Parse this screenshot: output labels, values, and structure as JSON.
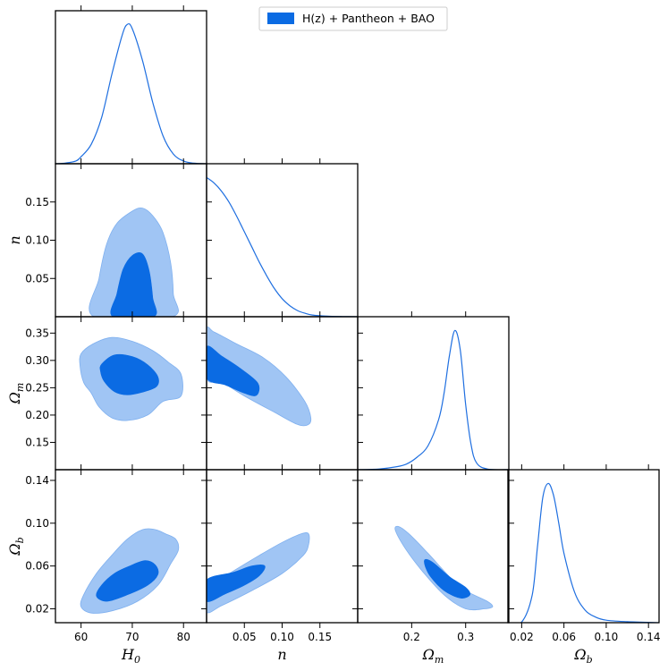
{
  "legend": {
    "label": "H(z) + Pantheon + BAO",
    "color": "#0b6be3"
  },
  "colors": {
    "inner": "#0b6be3",
    "outer": "#a0c5f4",
    "line": "#1f6fe0"
  },
  "chart_data": {
    "type": "corner",
    "parameters": [
      {
        "key": "H0",
        "label": "H0",
        "range": [
          55,
          84.5
        ],
        "ticks": [
          60,
          70,
          80
        ],
        "tick_labels": [
          "60",
          "70",
          "80"
        ]
      },
      {
        "key": "n",
        "label": "n",
        "range": [
          0,
          0.2
        ],
        "ticks": [
          0.05,
          0.1,
          0.15
        ],
        "tick_labels": [
          "0.05",
          "0.10",
          "0.15"
        ]
      },
      {
        "key": "Om",
        "label": "Ωm",
        "range": [
          0.1,
          0.38
        ],
        "ticks": [
          0.15,
          0.2,
          0.25,
          0.3,
          0.35
        ],
        "tick_labels": [
          "0.15",
          "0.20",
          "0.25",
          "0.30",
          "0.35"
        ],
        "x_ticks": [
          0.2,
          0.3
        ],
        "x_tick_labels": [
          "0.2",
          "0.3"
        ]
      },
      {
        "key": "Ob",
        "label": "Ωb",
        "range": [
          0.007,
          0.15
        ],
        "ticks": [
          0.02,
          0.06,
          0.1,
          0.14
        ],
        "tick_labels": [
          "0.02",
          "0.06",
          "0.10",
          "0.14"
        ]
      }
    ],
    "marginals": [
      {
        "param": "H0",
        "x": [
          55,
          57,
          59,
          60,
          62,
          64,
          66,
          68,
          69,
          70,
          72,
          74,
          76,
          78,
          80,
          82,
          84.5
        ],
        "density": [
          0,
          0.005,
          0.02,
          0.05,
          0.14,
          0.33,
          0.64,
          0.92,
          1.0,
          0.97,
          0.74,
          0.44,
          0.2,
          0.07,
          0.02,
          0.004,
          0
        ]
      },
      {
        "param": "n",
        "x": [
          0,
          0.01,
          0.02,
          0.03,
          0.04,
          0.05,
          0.06,
          0.07,
          0.08,
          0.09,
          0.1,
          0.11,
          0.12,
          0.13,
          0.14,
          0.16,
          0.18,
          0.2
        ],
        "density": [
          1.0,
          0.96,
          0.9,
          0.82,
          0.72,
          0.61,
          0.5,
          0.39,
          0.29,
          0.2,
          0.13,
          0.08,
          0.045,
          0.025,
          0.012,
          0.004,
          0.001,
          0
        ]
      },
      {
        "param": "Om",
        "x": [
          0.1,
          0.14,
          0.17,
          0.19,
          0.21,
          0.23,
          0.25,
          0.26,
          0.27,
          0.28,
          0.29,
          0.3,
          0.31,
          0.32,
          0.34,
          0.38
        ],
        "density": [
          0,
          0.005,
          0.02,
          0.04,
          0.09,
          0.17,
          0.36,
          0.55,
          0.82,
          1.0,
          0.86,
          0.47,
          0.18,
          0.05,
          0.005,
          0
        ]
      },
      {
        "param": "Ob",
        "x": [
          0.007,
          0.02,
          0.03,
          0.035,
          0.04,
          0.045,
          0.05,
          0.055,
          0.06,
          0.07,
          0.08,
          0.09,
          0.1,
          0.12,
          0.15
        ],
        "density": [
          0,
          0.005,
          0.2,
          0.55,
          0.9,
          1.0,
          0.92,
          0.72,
          0.5,
          0.22,
          0.09,
          0.04,
          0.018,
          0.007,
          0
        ]
      }
    ],
    "contours": [
      {
        "x": "H0",
        "y": "n",
        "outer": [
          [
            62.5,
            0
          ],
          [
            63.5,
            0.05
          ],
          [
            65,
            0.095
          ],
          [
            67,
            0.122
          ],
          [
            70,
            0.138
          ],
          [
            72,
            0.142
          ],
          [
            74,
            0.132
          ],
          [
            76,
            0.11
          ],
          [
            77.5,
            0.07
          ],
          [
            78,
            0.03
          ],
          [
            77.8,
            0
          ]
        ],
        "inner": [
          [
            66.2,
            0
          ],
          [
            67,
            0.03
          ],
          [
            68.2,
            0.062
          ],
          [
            70,
            0.08
          ],
          [
            72,
            0.082
          ],
          [
            73.3,
            0.06
          ],
          [
            74,
            0.025
          ],
          [
            74.2,
            0
          ]
        ]
      },
      {
        "x": "H0",
        "y": "Om",
        "outer": [
          [
            60,
            0.312
          ],
          [
            62.3,
            0.33
          ],
          [
            66,
            0.342
          ],
          [
            70,
            0.335
          ],
          [
            74,
            0.318
          ],
          [
            77,
            0.297
          ],
          [
            79.5,
            0.275
          ],
          [
            79.5,
            0.235
          ],
          [
            76,
            0.225
          ],
          [
            73,
            0.2
          ],
          [
            69,
            0.19
          ],
          [
            66,
            0.195
          ],
          [
            63.5,
            0.215
          ],
          [
            62,
            0.24
          ],
          [
            60.5,
            0.26
          ],
          [
            59.8,
            0.29
          ]
        ],
        "inner": [
          [
            64,
            0.293
          ],
          [
            66.5,
            0.31
          ],
          [
            70,
            0.307
          ],
          [
            73,
            0.292
          ],
          [
            75,
            0.27
          ],
          [
            74.7,
            0.252
          ],
          [
            72,
            0.242
          ],
          [
            69,
            0.237
          ],
          [
            66.5,
            0.243
          ],
          [
            64.5,
            0.262
          ],
          [
            63.8,
            0.28
          ]
        ]
      },
      {
        "x": "H0",
        "y": "Ob",
        "outer": [
          [
            60,
            0.022
          ],
          [
            60.5,
            0.033
          ],
          [
            63,
            0.053
          ],
          [
            66,
            0.07
          ],
          [
            69,
            0.085
          ],
          [
            72,
            0.094
          ],
          [
            74.5,
            0.094
          ],
          [
            76.5,
            0.09
          ],
          [
            78.5,
            0.085
          ],
          [
            79,
            0.075
          ],
          [
            77.5,
            0.062
          ],
          [
            75,
            0.042
          ],
          [
            71,
            0.027
          ],
          [
            66,
            0.018
          ],
          [
            62,
            0.016
          ]
        ],
        "inner": [
          [
            63,
            0.032
          ],
          [
            64,
            0.042
          ],
          [
            66.5,
            0.053
          ],
          [
            69.5,
            0.06
          ],
          [
            72.5,
            0.065
          ],
          [
            74.5,
            0.061
          ],
          [
            75,
            0.052
          ],
          [
            73,
            0.042
          ],
          [
            69,
            0.033
          ],
          [
            65,
            0.027
          ]
        ]
      },
      {
        "x": "n",
        "y": "Om",
        "outer": [
          [
            0,
            0.355
          ],
          [
            0.01,
            0.352
          ],
          [
            0.04,
            0.33
          ],
          [
            0.075,
            0.305
          ],
          [
            0.105,
            0.27
          ],
          [
            0.13,
            0.225
          ],
          [
            0.138,
            0.195
          ],
          [
            0.134,
            0.182
          ],
          [
            0.12,
            0.183
          ],
          [
            0.09,
            0.205
          ],
          [
            0.05,
            0.235
          ],
          [
            0.02,
            0.26
          ],
          [
            0,
            0.268
          ]
        ],
        "inner": [
          [
            0,
            0.325
          ],
          [
            0.02,
            0.308
          ],
          [
            0.045,
            0.285
          ],
          [
            0.068,
            0.258
          ],
          [
            0.066,
            0.236
          ],
          [
            0.05,
            0.24
          ],
          [
            0.025,
            0.255
          ],
          [
            0,
            0.268
          ]
        ]
      },
      {
        "x": "n",
        "y": "Ob",
        "outer": [
          [
            0,
            0.04
          ],
          [
            0.03,
            0.053
          ],
          [
            0.07,
            0.07
          ],
          [
            0.1,
            0.082
          ],
          [
            0.125,
            0.09
          ],
          [
            0.135,
            0.09
          ],
          [
            0.135,
            0.08
          ],
          [
            0.128,
            0.07
          ],
          [
            0.1,
            0.053
          ],
          [
            0.06,
            0.037
          ],
          [
            0.02,
            0.023
          ],
          [
            0,
            0.017
          ]
        ],
        "inner": [
          [
            0,
            0.047
          ],
          [
            0.035,
            0.054
          ],
          [
            0.06,
            0.06
          ],
          [
            0.077,
            0.06
          ],
          [
            0.07,
            0.051
          ],
          [
            0.05,
            0.042
          ],
          [
            0.025,
            0.034
          ],
          [
            0,
            0.027
          ]
        ]
      },
      {
        "x": "Om",
        "y": "Ob",
        "outer": [
          [
            0.175,
            0.097
          ],
          [
            0.195,
            0.09
          ],
          [
            0.23,
            0.072
          ],
          [
            0.27,
            0.05
          ],
          [
            0.3,
            0.037
          ],
          [
            0.34,
            0.027
          ],
          [
            0.35,
            0.022
          ],
          [
            0.335,
            0.02
          ],
          [
            0.3,
            0.02
          ],
          [
            0.26,
            0.033
          ],
          [
            0.22,
            0.055
          ],
          [
            0.19,
            0.075
          ],
          [
            0.17,
            0.093
          ]
        ],
        "inner": [
          [
            0.225,
            0.066
          ],
          [
            0.24,
            0.063
          ],
          [
            0.27,
            0.05
          ],
          [
            0.3,
            0.04
          ],
          [
            0.308,
            0.033
          ],
          [
            0.29,
            0.03
          ],
          [
            0.26,
            0.037
          ],
          [
            0.235,
            0.05
          ],
          [
            0.225,
            0.06
          ]
        ]
      }
    ]
  }
}
